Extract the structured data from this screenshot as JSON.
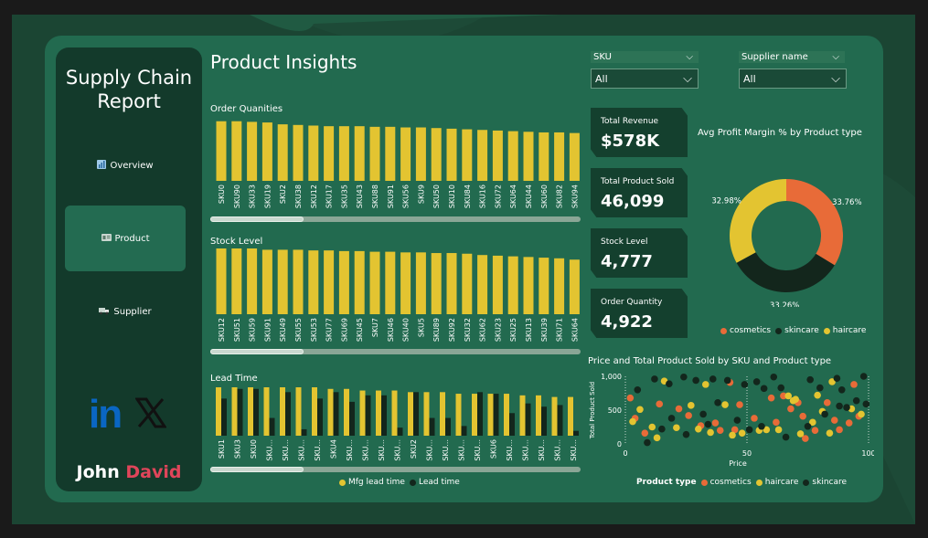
{
  "sidebar": {
    "title_line1": "Supply Chain",
    "title_line2": "Report",
    "nav": [
      {
        "label": "Overview",
        "icon": "bar-chart-icon"
      },
      {
        "label": "Product",
        "icon": "box-icon"
      },
      {
        "label": "Supplier",
        "icon": "truck-icon"
      }
    ],
    "active_nav": "Product",
    "author_first": "John",
    "author_last": "David"
  },
  "page_title": "Product Insights",
  "slicers": [
    {
      "label": "SKU",
      "value": "All"
    },
    {
      "label": "Supplier name",
      "value": "All"
    }
  ],
  "kpis": [
    {
      "label": "Total Revenue",
      "value": "$578K"
    },
    {
      "label": "Total Product Sold",
      "value": "46,099"
    },
    {
      "label": "Stock Level",
      "value": "4,777"
    },
    {
      "label": "Order Quantity",
      "value": "4,922"
    }
  ],
  "colors": {
    "bar": "#e3c431",
    "lead_time": "#13261c",
    "cosmetics": "#e86b38",
    "skincare": "#13261c",
    "haircare": "#e3c431"
  },
  "chart_data": [
    {
      "type": "bar",
      "title": "Order Quanities",
      "categories": [
        "SKU0",
        "SKU90",
        "SKU33",
        "SKU19",
        "SKU2",
        "SKU38",
        "SKU12",
        "SKU17",
        "SKU35",
        "SKU43",
        "SKU88",
        "SKU91",
        "SKU56",
        "SKU9",
        "SKU50",
        "SKU10",
        "SKU84",
        "SKU16",
        "SKU72",
        "SKU64",
        "SKU44",
        "SKU60",
        "SKU82",
        "SKU94"
      ],
      "values": [
        96,
        96,
        95,
        94,
        91,
        90,
        89,
        88,
        88,
        88,
        87,
        87,
        86,
        86,
        85,
        84,
        83,
        82,
        81,
        80,
        79,
        78,
        78,
        77
      ],
      "ylim": [
        0,
        100
      ],
      "scrollbar": true
    },
    {
      "type": "bar",
      "title": "Stock Level",
      "categories": [
        "SKU12",
        "SKU51",
        "SKU59",
        "SKU91",
        "SKU49",
        "SKU55",
        "SKU53",
        "SKU77",
        "SKU69",
        "SKU45",
        "SKU7",
        "SKU46",
        "SKU40",
        "SKU5",
        "SKU89",
        "SKU92",
        "SKU32",
        "SKU62",
        "SKU23",
        "SKU25",
        "SKU13",
        "SKU39",
        "SKU71",
        "SKU64"
      ],
      "values": [
        100,
        100,
        100,
        98,
        98,
        98,
        97,
        97,
        96,
        96,
        95,
        95,
        94,
        94,
        93,
        93,
        92,
        90,
        89,
        88,
        87,
        86,
        85,
        83
      ],
      "ylim": [
        0,
        100
      ],
      "scrollbar": true
    },
    {
      "type": "bar",
      "title": "Lead Time",
      "categories": [
        "SKU1",
        "SKU3",
        "SKU0",
        "SKU...",
        "SKU...",
        "SKU...",
        "SKU...",
        "SKU4",
        "SKU...",
        "SKU...",
        "SKU...",
        "SKU...",
        "SKU2",
        "SKU...",
        "SKU...",
        "SKU...",
        "SKU...",
        "SKU6",
        "SKU...",
        "SKU...",
        "SKU...",
        "SKU...",
        "SKU..."
      ],
      "series": [
        {
          "name": "Mfg lead time",
          "values": [
            30,
            30,
            30,
            30,
            30,
            30,
            30,
            29,
            29,
            28,
            28,
            28,
            27,
            27,
            27,
            26,
            26,
            26,
            26,
            25,
            25,
            24,
            24
          ]
        },
        {
          "name": "Lead time",
          "values": [
            23,
            29,
            29,
            11,
            27,
            4,
            23,
            27,
            21,
            25,
            25,
            5,
            27,
            11,
            11,
            6,
            27,
            26,
            14,
            20,
            18,
            19,
            3
          ]
        }
      ],
      "legend": "bottom",
      "ylim": [
        0,
        30
      ],
      "scrollbar": true
    },
    {
      "type": "pie",
      "title": "Avg Profit Margin % by Product type",
      "labels": [
        "cosmetics",
        "skincare",
        "haircare"
      ],
      "values": [
        33.76,
        33.26,
        32.98
      ],
      "value_labels": [
        "33.76%",
        "33.26%",
        "32.98%"
      ],
      "donut": true,
      "legend": "bottom"
    },
    {
      "type": "scatter",
      "title": "Price and Total Product Sold by SKU and Product type",
      "xlabel": "Price",
      "ylabel": "Total Product Sold",
      "xlim": [
        0,
        100
      ],
      "ylim": [
        0,
        1000
      ],
      "xticks": [
        "0",
        "50",
        "100"
      ],
      "yticks": [
        "0",
        "500",
        "1,000"
      ],
      "legend_title": "Product type",
      "legend": "bottom",
      "series": [
        {
          "name": "cosmetics",
          "points": [
            [
              2,
              680
            ],
            [
              4,
              380
            ],
            [
              8,
              160
            ],
            [
              14,
              590
            ],
            [
              22,
              520
            ],
            [
              26,
              420
            ],
            [
              31,
              270
            ],
            [
              37,
              310
            ],
            [
              45,
              210
            ],
            [
              47,
              580
            ],
            [
              53,
              380
            ],
            [
              60,
              680
            ],
            [
              62,
              320
            ],
            [
              65,
              710
            ],
            [
              68,
              520
            ],
            [
              73,
              410
            ],
            [
              74,
              80
            ],
            [
              78,
              200
            ],
            [
              83,
              610
            ],
            [
              86,
              350
            ],
            [
              88,
              210
            ],
            [
              92,
              310
            ],
            [
              94,
              880
            ],
            [
              96,
              410
            ],
            [
              71,
              610
            ],
            [
              43,
              910
            ],
            [
              39,
              200
            ]
          ]
        },
        {
          "name": "haircare",
          "points": [
            [
              3,
              330
            ],
            [
              6,
              510
            ],
            [
              11,
              250
            ],
            [
              13,
              90
            ],
            [
              16,
              930
            ],
            [
              21,
              240
            ],
            [
              27,
              570
            ],
            [
              30,
              220
            ],
            [
              33,
              880
            ],
            [
              35,
              170
            ],
            [
              41,
              580
            ],
            [
              44,
              130
            ],
            [
              48,
              160
            ],
            [
              55,
              200
            ],
            [
              58,
              210
            ],
            [
              63,
              210
            ],
            [
              67,
              710
            ],
            [
              69,
              640
            ],
            [
              72,
              150
            ],
            [
              77,
              320
            ],
            [
              79,
              720
            ],
            [
              81,
              480
            ],
            [
              84,
              160
            ],
            [
              85,
              920
            ],
            [
              93,
              520
            ],
            [
              97,
              440
            ],
            [
              70,
              660
            ]
          ]
        },
        {
          "name": "skincare",
          "points": [
            [
              5,
              800
            ],
            [
              9,
              20
            ],
            [
              12,
              960
            ],
            [
              15,
              220
            ],
            [
              18,
              890
            ],
            [
              19,
              380
            ],
            [
              24,
              990
            ],
            [
              25,
              140
            ],
            [
              29,
              940
            ],
            [
              32,
              440
            ],
            [
              34,
              290
            ],
            [
              36,
              960
            ],
            [
              38,
              610
            ],
            [
              42,
              940
            ],
            [
              46,
              350
            ],
            [
              49,
              880
            ],
            [
              51,
              210
            ],
            [
              54,
              920
            ],
            [
              57,
              820
            ],
            [
              61,
              990
            ],
            [
              64,
              830
            ],
            [
              66,
              100
            ],
            [
              75,
              260
            ],
            [
              76,
              950
            ],
            [
              80,
              830
            ],
            [
              82,
              440
            ],
            [
              87,
              970
            ],
            [
              89,
              800
            ],
            [
              91,
              540
            ],
            [
              95,
              640
            ],
            [
              98,
              1000
            ],
            [
              99,
              590
            ],
            [
              56,
              260
            ],
            [
              88,
              560
            ]
          ]
        }
      ]
    }
  ]
}
